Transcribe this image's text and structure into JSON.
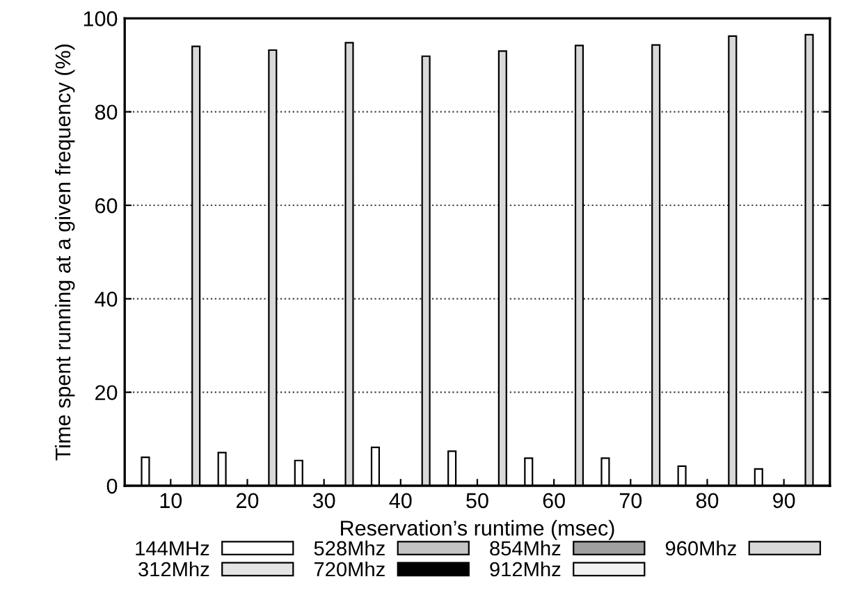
{
  "chart_data": {
    "type": "bar",
    "xlabel": "Reservation’s runtime (msec)",
    "ylabel": "Time spent running at a given frequency (%)",
    "categories": [
      "10",
      "20",
      "30",
      "40",
      "50",
      "60",
      "70",
      "80",
      "90"
    ],
    "series": [
      {
        "name": "144MHz",
        "color": "#ffffff",
        "values": [
          6.1,
          7.1,
          5.4,
          8.2,
          7.4,
          5.9,
          5.9,
          4.2,
          3.6
        ]
      },
      {
        "name": "312Mhz",
        "color": "#e4e4e4",
        "values": [
          null,
          null,
          null,
          null,
          null,
          null,
          null,
          null,
          null
        ]
      },
      {
        "name": "528Mhz",
        "color": "#c4c4c4",
        "values": [
          null,
          null,
          null,
          null,
          null,
          null,
          null,
          null,
          null
        ]
      },
      {
        "name": "720Mhz",
        "color": "#000000",
        "values": [
          null,
          null,
          null,
          null,
          null,
          null,
          null,
          null,
          null
        ]
      },
      {
        "name": "854Mhz",
        "color": "#a0a0a0",
        "values": [
          null,
          null,
          null,
          null,
          null,
          null,
          null,
          null,
          null
        ]
      },
      {
        "name": "912Mhz",
        "color": "#f2f2f2",
        "values": [
          null,
          null,
          null,
          null,
          null,
          null,
          null,
          null,
          null
        ]
      },
      {
        "name": "960Mhz",
        "color": "#d8d8d8",
        "values": [
          94.0,
          93.2,
          94.8,
          91.9,
          93.0,
          94.2,
          94.3,
          96.2,
          96.5
        ]
      }
    ],
    "ylim": [
      0,
      100
    ],
    "yticks": [
      0,
      20,
      40,
      60,
      80,
      100
    ],
    "grid": "y",
    "legend": "bottom"
  }
}
